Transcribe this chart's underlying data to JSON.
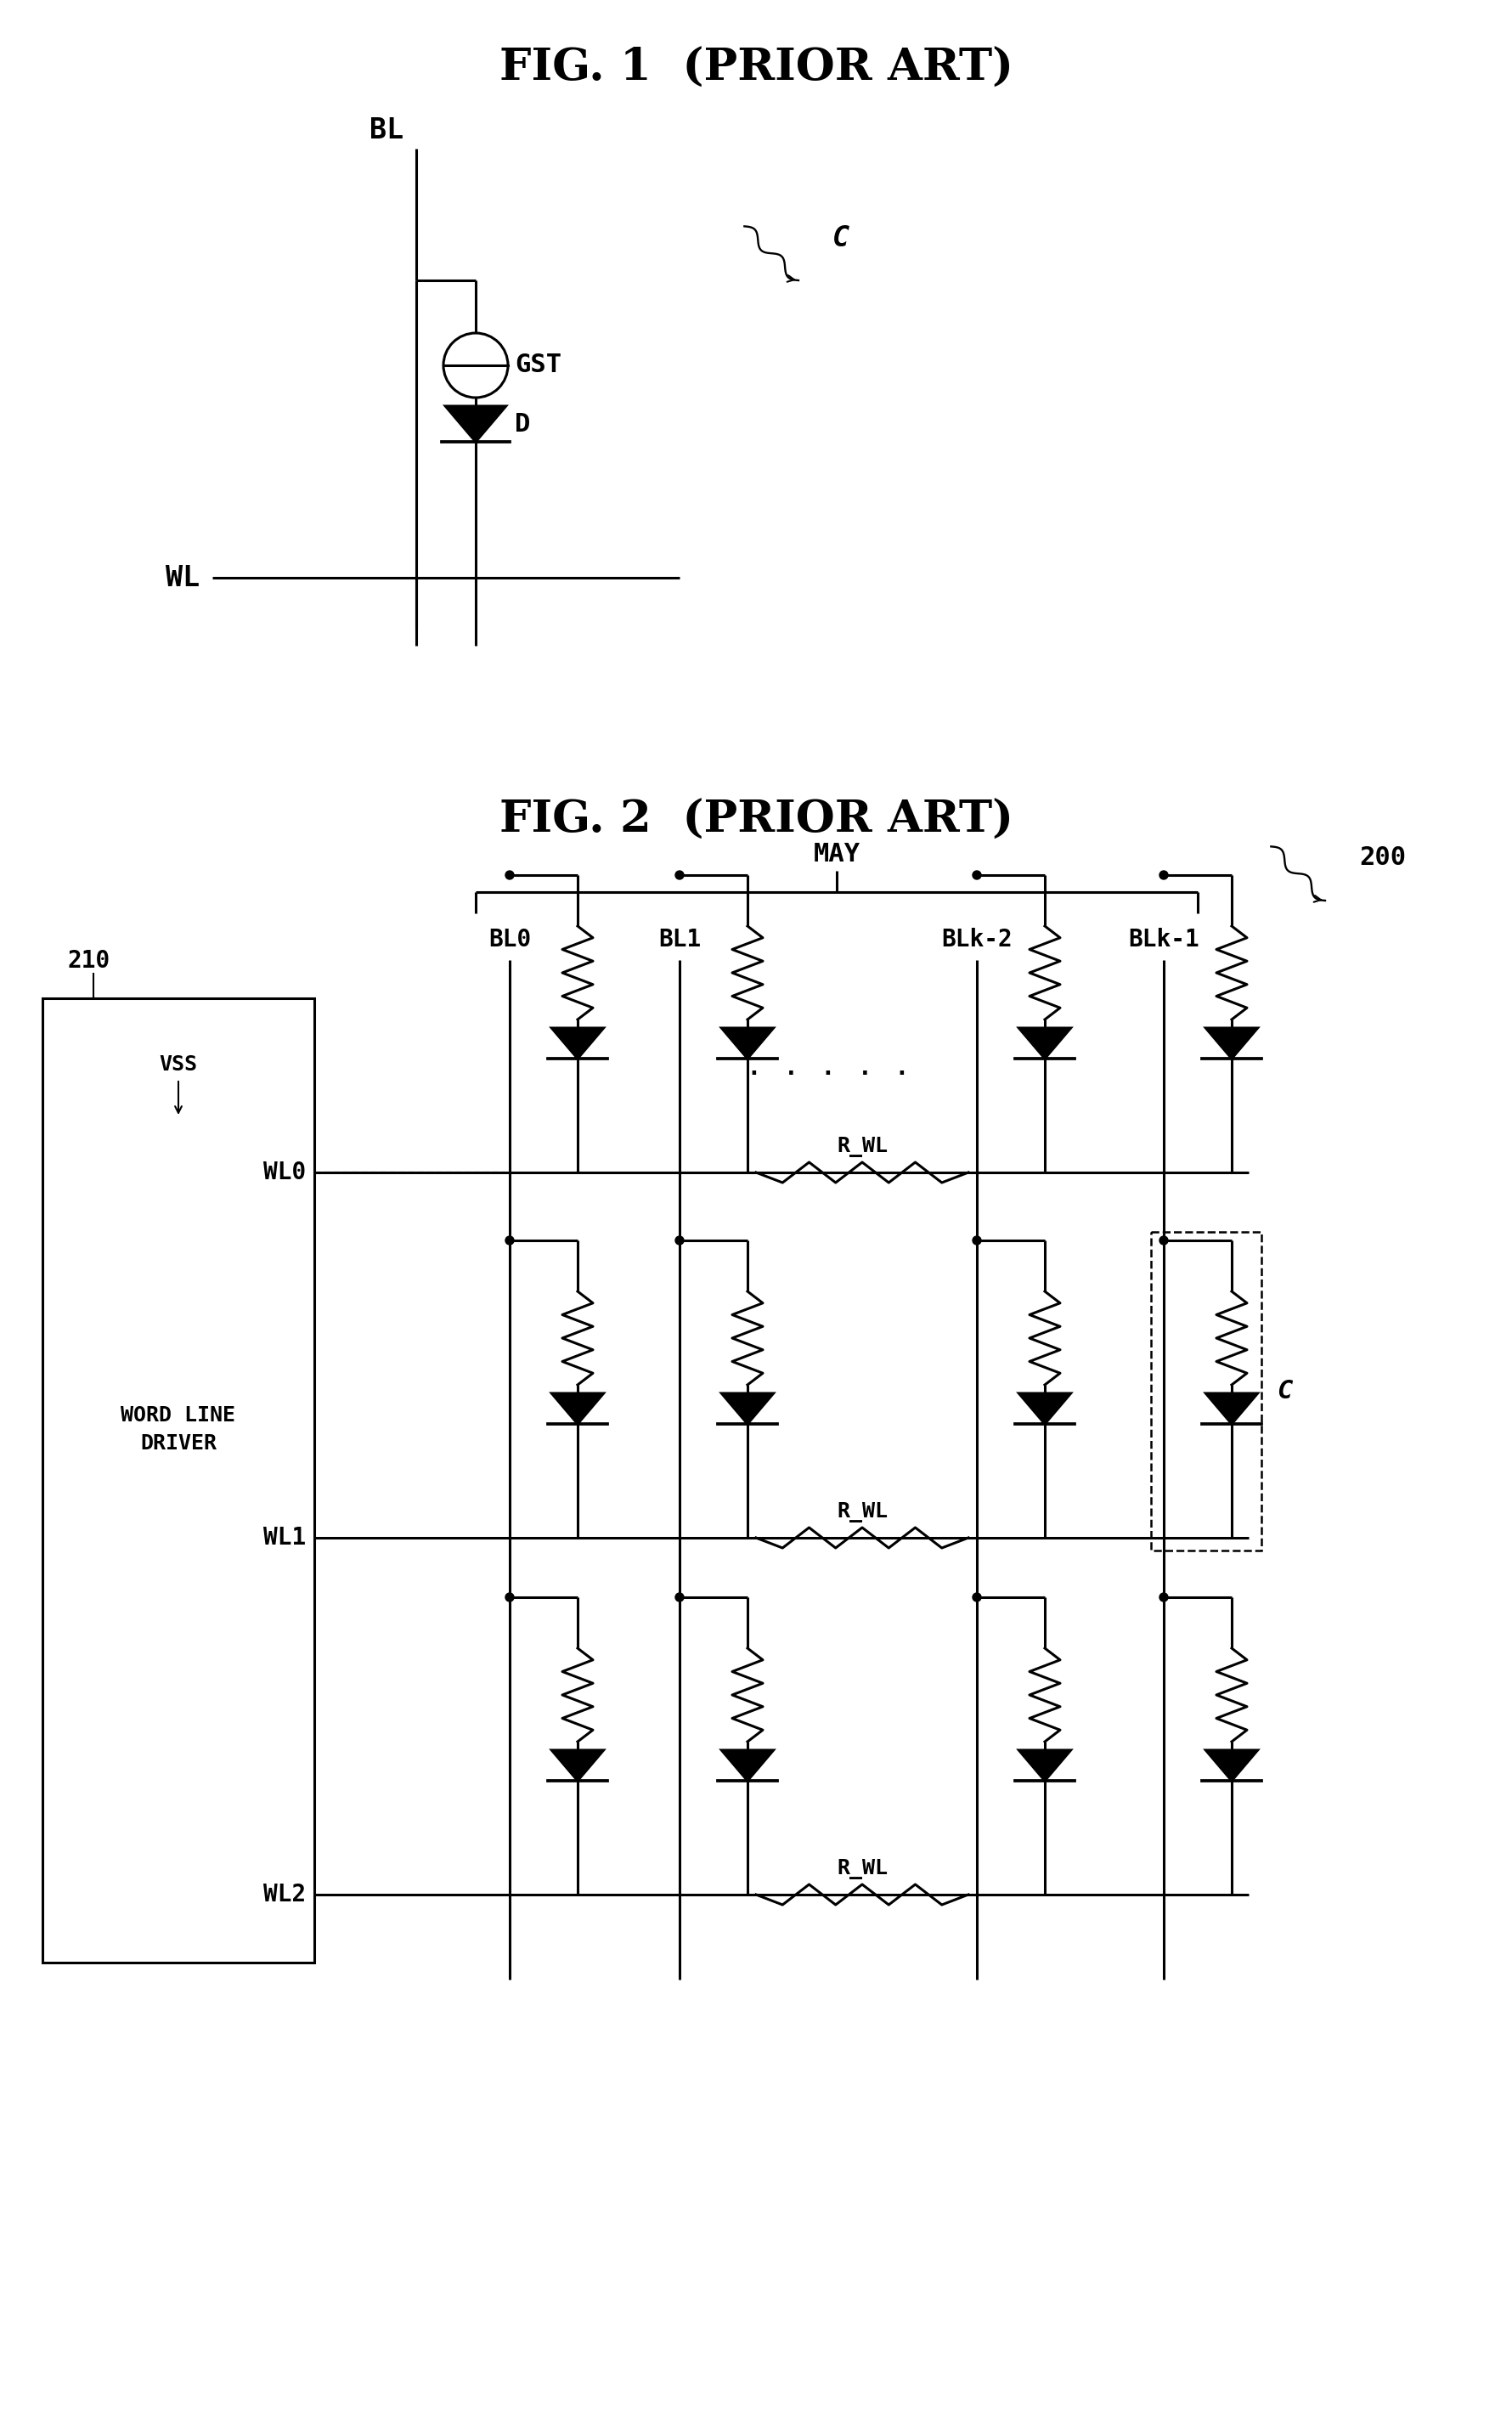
{
  "fig1_title": "FIG. 1  (PRIOR ART)",
  "fig2_title": "FIG. 2  (PRIOR ART)",
  "bg_color": "#ffffff",
  "line_color": "#000000",
  "lw": 2.2,
  "fig1": {
    "BL_label": "BL",
    "GST_label": "GST",
    "D_label": "D",
    "WL_label": "WL",
    "C_label": "C"
  },
  "fig2": {
    "label_210": "210",
    "label_200": "200",
    "label_MAY": "MAY",
    "label_WL0": "WL0",
    "label_WL1": "WL1",
    "label_WL2": "WL2",
    "label_BL0": "BL0",
    "label_BL1": "BL1",
    "label_BLk2": "BLk-2",
    "label_BLk1": "BLk-1",
    "label_VSS": "VSS",
    "label_WLD": "WORD LINE\nDRIVER",
    "label_R_WL": "R_WL",
    "label_C": "C"
  }
}
